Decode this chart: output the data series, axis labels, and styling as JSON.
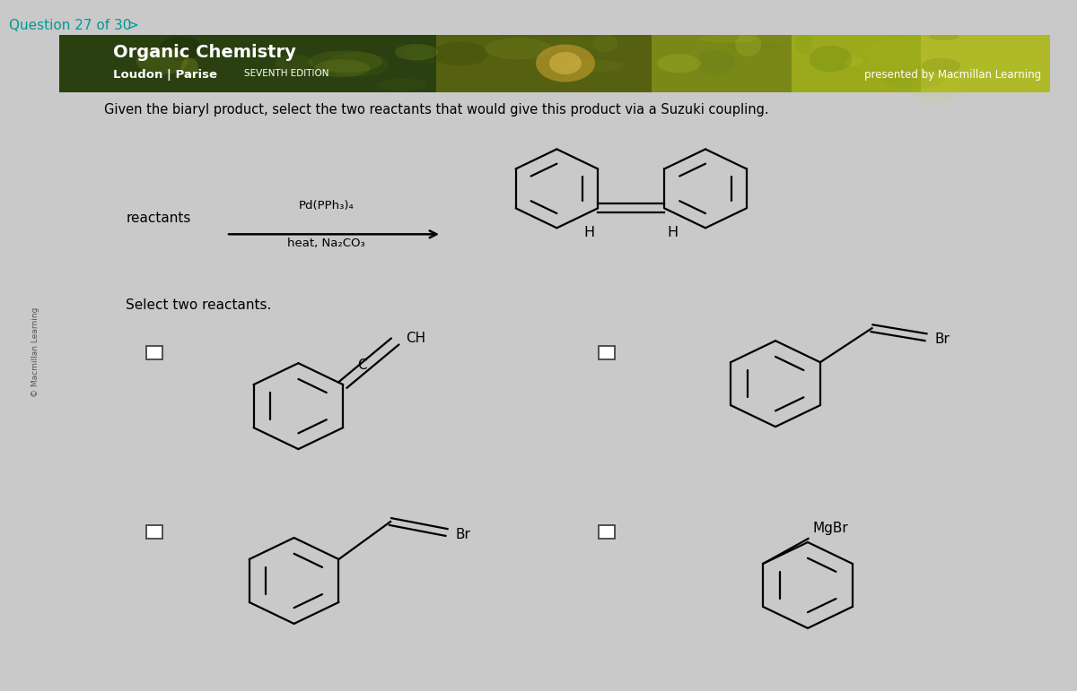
{
  "page_bg": "#c9c9c9",
  "panel_bg": "#ffffff",
  "question_color": "#009999",
  "question_text": "Question 27 of 30",
  "title_bold": "Organic Chemistry",
  "title_sub": "Loudon | Parise",
  "title_edition": "SEVENTH EDITION",
  "presented_by": "presented by Macmillan Learning",
  "sidebar_text": "© Macmillan Learning",
  "question_body": "Given the biaryl product, select the two reactants that would give this product via a Suzuki coupling.",
  "reactants_label": "reactants",
  "catalyst_line1": "Pd(PPh₃)₄",
  "catalyst_line2": "heat, Na₂CO₃",
  "select_text": "Select two reactants.",
  "label_br": "Br",
  "label_mgbr": "MgBr",
  "label_ch": "CH",
  "label_h": "H",
  "header_green_dark": "#2d4a15",
  "header_green_mid": "#4a6820",
  "header_olive": "#8a9020",
  "lw_struct": 1.6
}
